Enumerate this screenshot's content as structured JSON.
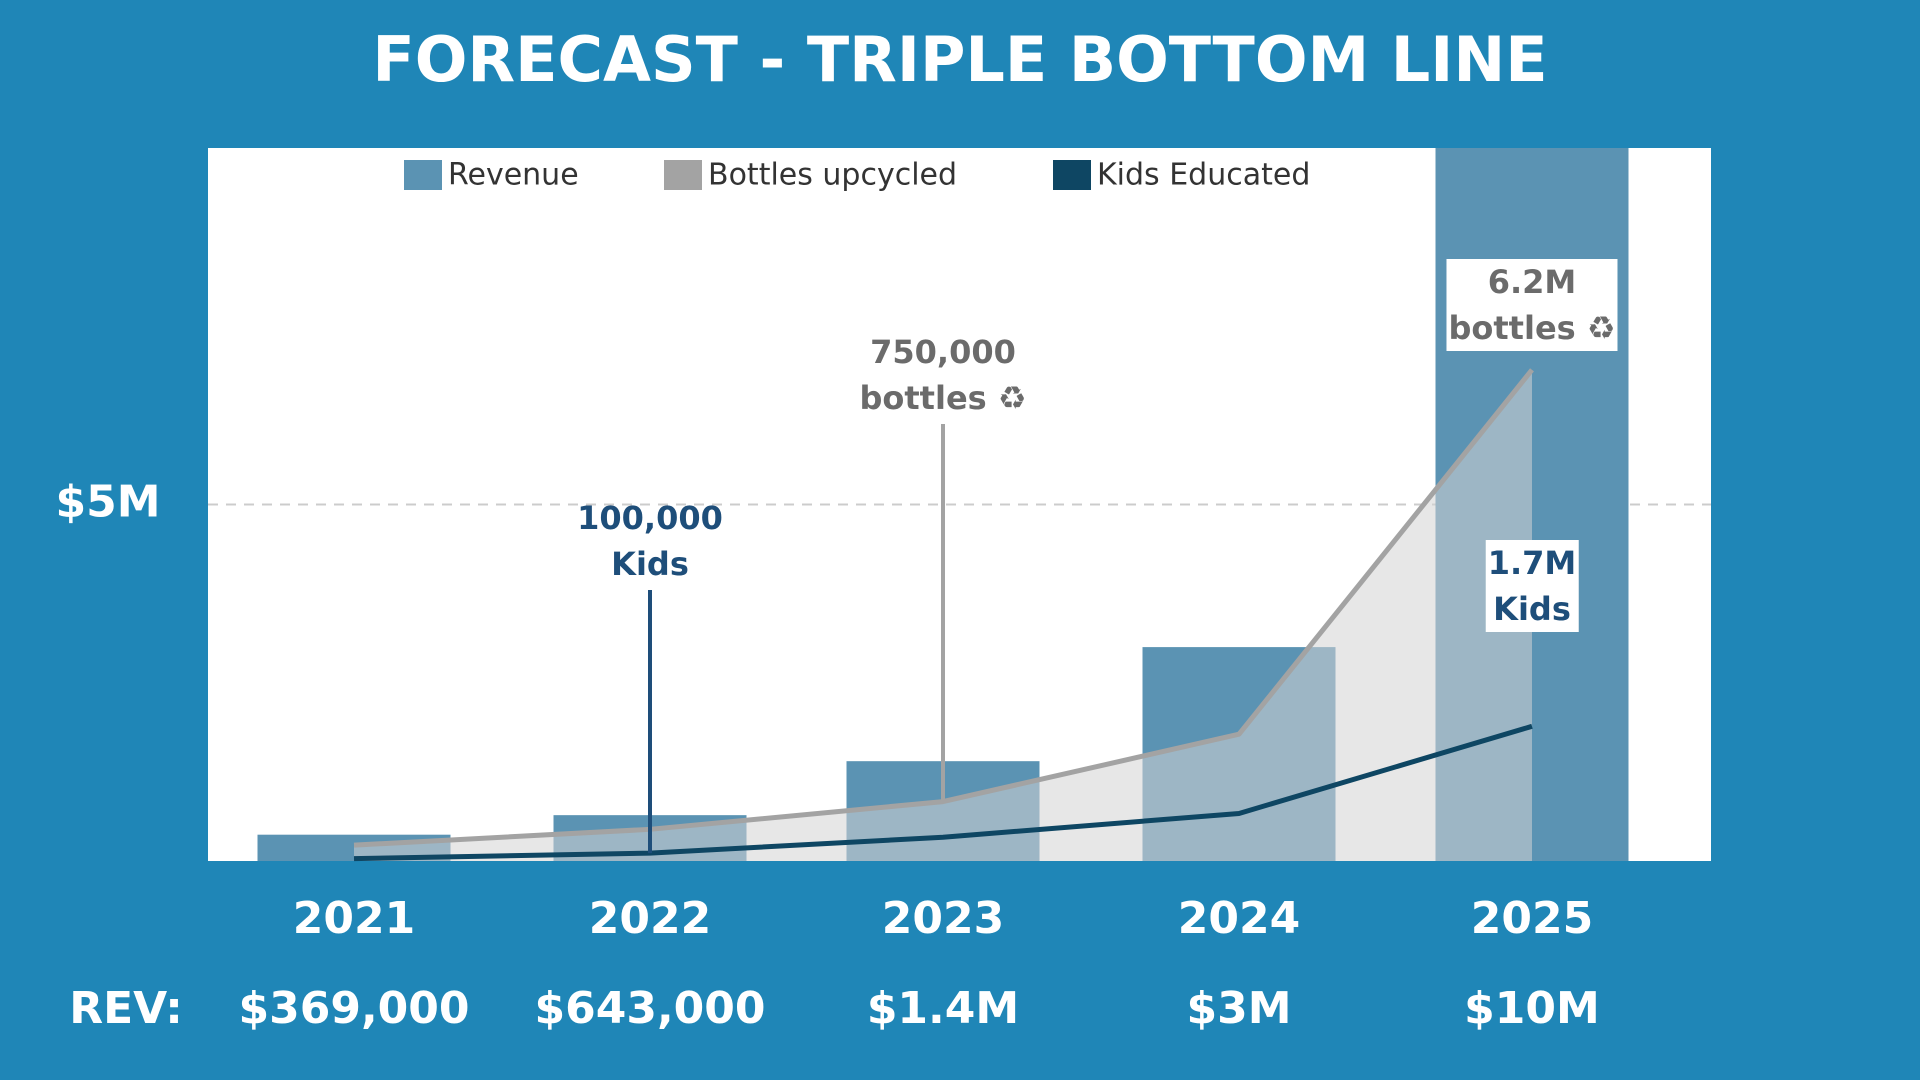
{
  "chart_data": {
    "type": "bar",
    "title": "FORECAST - TRIPLE BOTTOM LINE",
    "categories": [
      "2021",
      "2022",
      "2023",
      "2024",
      "2025"
    ],
    "revenue_label": "REV:",
    "ylim": [
      0,
      10000000
    ],
    "yticks": [
      {
        "value": 5000000,
        "label": "$5M"
      }
    ],
    "y2lim": [
      0,
      9000000
    ],
    "grid": true,
    "legend": "top",
    "series": [
      {
        "name": "Revenue",
        "type": "bar",
        "color": "#5b93b3",
        "values": [
          369000,
          643000,
          1400000,
          3000000,
          10000000
        ],
        "value_labels": [
          "$369,000",
          "$643,000",
          "$1.4M",
          "$3M",
          "$10M"
        ]
      },
      {
        "name": "Bottles upcycled",
        "type": "line",
        "axis": "y2",
        "color": "#a3a3a3",
        "values": [
          200000,
          400000,
          750000,
          1600000,
          6200000
        ],
        "value_labels": [
          null,
          null,
          "750,000\nbottles ♻",
          null,
          "6.2M\nbottles ♻"
        ]
      },
      {
        "name": "Kids Educated",
        "type": "line",
        "axis": "y2",
        "color": "#0e4663",
        "values": [
          30000,
          100000,
          300000,
          600000,
          1700000
        ],
        "value_labels": [
          null,
          "100,000\nKids",
          null,
          null,
          "1.7M\nKids"
        ]
      }
    ]
  }
}
